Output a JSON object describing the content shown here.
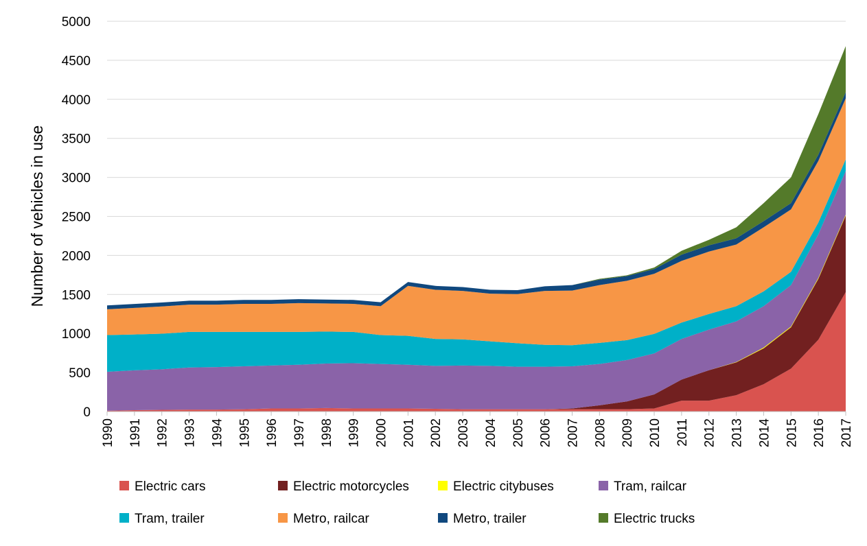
{
  "chart_data": {
    "type": "area",
    "stacked": true,
    "title": "",
    "xlabel": "",
    "ylabel": "Number of vehicles in use",
    "ylim": [
      0,
      5000
    ],
    "yticks": [
      0,
      500,
      1000,
      1500,
      2000,
      2500,
      3000,
      3500,
      4000,
      4500,
      5000
    ],
    "grid": true,
    "legend_position": "bottom",
    "x": [
      "1990",
      "1991",
      "1992",
      "1993",
      "1994",
      "1995",
      "1996",
      "1997",
      "1998",
      "1999",
      "2000",
      "2001",
      "2002",
      "2003",
      "2004",
      "2005",
      "2006",
      "2007",
      "2008",
      "2009",
      "2010",
      "2011",
      "2012",
      "2013",
      "2014",
      "2015",
      "2016",
      "2017"
    ],
    "series": [
      {
        "name": "Electric cars",
        "color": "#d9534f",
        "values": [
          10,
          18,
          22,
          25,
          25,
          30,
          40,
          40,
          45,
          40,
          40,
          40,
          35,
          30,
          30,
          30,
          30,
          30,
          30,
          30,
          40,
          140,
          140,
          210,
          350,
          550,
          920,
          1530
        ]
      },
      {
        "name": "Electric motorcycles",
        "color": "#722020",
        "values": [
          0,
          0,
          0,
          0,
          0,
          0,
          0,
          0,
          0,
          0,
          0,
          0,
          0,
          0,
          0,
          0,
          0,
          10,
          50,
          100,
          180,
          270,
          390,
          420,
          460,
          530,
          780,
          980
        ]
      },
      {
        "name": "Electric citybuses",
        "color": "#ffff00",
        "values": [
          0,
          0,
          0,
          0,
          0,
          0,
          0,
          0,
          0,
          0,
          0,
          0,
          0,
          0,
          0,
          0,
          0,
          0,
          0,
          0,
          0,
          0,
          0,
          5,
          10,
          10,
          12,
          12
        ]
      },
      {
        "name": "Tram, railcar",
        "color": "#8a63a8",
        "values": [
          500,
          510,
          520,
          540,
          545,
          550,
          550,
          560,
          570,
          580,
          570,
          560,
          550,
          560,
          555,
          545,
          545,
          540,
          530,
          530,
          525,
          520,
          520,
          520,
          530,
          530,
          560,
          560
        ]
      },
      {
        "name": "Tram, trailer",
        "color": "#00b0c8",
        "values": [
          470,
          460,
          455,
          455,
          450,
          440,
          430,
          420,
          410,
          400,
          370,
          370,
          345,
          335,
          315,
          300,
          280,
          270,
          270,
          255,
          250,
          210,
          200,
          195,
          190,
          170,
          150,
          150
        ]
      },
      {
        "name": "Metro, railcar",
        "color": "#f79646",
        "values": [
          330,
          340,
          350,
          350,
          350,
          360,
          360,
          370,
          360,
          360,
          370,
          640,
          630,
          620,
          610,
          630,
          690,
          700,
          740,
          760,
          770,
          790,
          800,
          790,
          820,
          800,
          790,
          780
        ]
      },
      {
        "name": "Metro, trailer",
        "color": "#10487e",
        "values": [
          50,
          50,
          50,
          50,
          50,
          50,
          50,
          50,
          50,
          50,
          50,
          50,
          50,
          50,
          50,
          50,
          60,
          70,
          70,
          60,
          60,
          80,
          80,
          80,
          80,
          80,
          80,
          80
        ]
      },
      {
        "name": "Electric trucks",
        "color": "#547a2a",
        "values": [
          0,
          0,
          0,
          0,
          0,
          0,
          0,
          0,
          0,
          0,
          0,
          0,
          0,
          0,
          0,
          0,
          0,
          0,
          10,
          10,
          20,
          50,
          70,
          140,
          230,
          330,
          520,
          590
        ]
      }
    ]
  }
}
